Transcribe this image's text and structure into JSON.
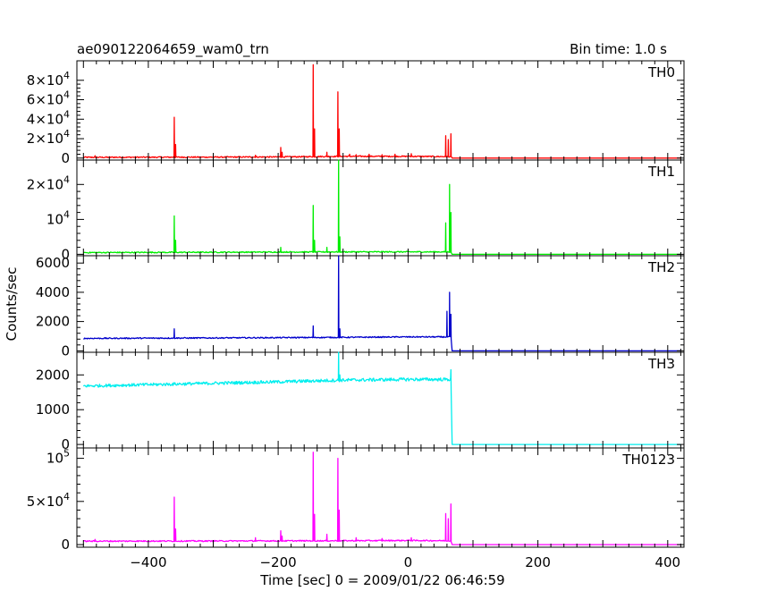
{
  "header": {
    "title": "ae090122064659_wam0_trn",
    "bin_time": "Bin time: 1.0 s"
  },
  "chart_data": {
    "type": "line",
    "xlabel": "Time [sec] 0 = 2009/01/22 06:46:59",
    "ylabel": "Counts/sec",
    "xlim": [
      -510,
      425
    ],
    "x_ticks": [
      -400,
      -200,
      0,
      200,
      400
    ],
    "x_tick_labels": [
      "−400",
      "−200",
      "0",
      "200",
      "400"
    ],
    "panels": [
      {
        "name": "TH0",
        "color": "#ff0000",
        "ylim": [
          -2000,
          100000
        ],
        "y_ticks": [
          0,
          20000,
          40000,
          60000,
          80000
        ],
        "y_tick_labels": [
          {
            "base": "0",
            "exp": ""
          },
          {
            "base": "2×10",
            "exp": "4"
          },
          {
            "base": "4×10",
            "exp": "4"
          },
          {
            "base": "6×10",
            "exp": "4"
          },
          {
            "base": "8×10",
            "exp": "4"
          }
        ],
        "baseline": [
          [
            -500,
            800
          ],
          [
            -400,
            900
          ],
          [
            -300,
            1000
          ],
          [
            -200,
            1200
          ],
          [
            -100,
            1800
          ],
          [
            0,
            1800
          ],
          [
            66,
            1500
          ],
          [
            68,
            0
          ],
          [
            420,
            0
          ]
        ],
        "spikes": [
          [
            -482,
            2500
          ],
          [
            -360,
            42000
          ],
          [
            -358,
            14000
          ],
          [
            -235,
            3000
          ],
          [
            -196,
            11000
          ],
          [
            -194,
            6000
          ],
          [
            -146,
            96000
          ],
          [
            -144,
            30000
          ],
          [
            -125,
            6000
          ],
          [
            -108,
            68000
          ],
          [
            -106,
            30000
          ],
          [
            -90,
            4000
          ],
          [
            -80,
            3500
          ],
          [
            -60,
            4000
          ],
          [
            -40,
            3500
          ],
          [
            -20,
            4000
          ],
          [
            5,
            4500
          ],
          [
            58,
            23000
          ],
          [
            62,
            19000
          ],
          [
            66,
            25000
          ]
        ]
      },
      {
        "name": "TH1",
        "color": "#00ee00",
        "ylim": [
          -400,
          27000
        ],
        "y_ticks": [
          0,
          10000,
          20000
        ],
        "y_tick_labels": [
          {
            "base": "0",
            "exp": ""
          },
          {
            "base": "10",
            "exp": "4"
          },
          {
            "base": "2×10",
            "exp": "4"
          }
        ],
        "baseline": [
          [
            -500,
            500
          ],
          [
            -300,
            600
          ],
          [
            -100,
            700
          ],
          [
            0,
            700
          ],
          [
            66,
            700
          ],
          [
            68,
            0
          ],
          [
            420,
            0
          ]
        ],
        "spikes": [
          [
            -360,
            11000
          ],
          [
            -358,
            4000
          ],
          [
            -196,
            2000
          ],
          [
            -146,
            14000
          ],
          [
            -144,
            4000
          ],
          [
            -125,
            2000
          ],
          [
            -107,
            27000
          ],
          [
            -105,
            5000
          ],
          [
            58,
            9000
          ],
          [
            64,
            20000
          ],
          [
            66,
            12000
          ]
        ]
      },
      {
        "name": "TH2",
        "color": "#0000cc",
        "ylim": [
          -100,
          6500
        ],
        "y_ticks": [
          0,
          2000,
          4000,
          6000
        ],
        "y_tick_labels": [
          {
            "base": "0",
            "exp": ""
          },
          {
            "base": "2000",
            "exp": ""
          },
          {
            "base": "4000",
            "exp": ""
          },
          {
            "base": "6000",
            "exp": ""
          }
        ],
        "baseline": [
          [
            -500,
            850
          ],
          [
            -300,
            880
          ],
          [
            -100,
            920
          ],
          [
            0,
            950
          ],
          [
            66,
            950
          ],
          [
            68,
            0
          ],
          [
            420,
            0
          ]
        ],
        "spikes": [
          [
            -360,
            1500
          ],
          [
            -146,
            1700
          ],
          [
            -107,
            6500
          ],
          [
            -105,
            1500
          ],
          [
            60,
            2700
          ],
          [
            64,
            4000
          ],
          [
            66,
            2500
          ]
        ]
      },
      {
        "name": "TH3",
        "color": "#00eeee",
        "ylim": [
          -100,
          2650
        ],
        "y_ticks": [
          0,
          1000,
          2000
        ],
        "y_tick_labels": [
          {
            "base": "0",
            "exp": ""
          },
          {
            "base": "1000",
            "exp": ""
          },
          {
            "base": "2000",
            "exp": ""
          }
        ],
        "baseline": [
          [
            -500,
            1680
          ],
          [
            -400,
            1720
          ],
          [
            -300,
            1760
          ],
          [
            -200,
            1800
          ],
          [
            -100,
            1850
          ],
          [
            0,
            1870
          ],
          [
            66,
            1870
          ],
          [
            68,
            0
          ],
          [
            420,
            0
          ]
        ],
        "spikes": [
          [
            -107,
            2650
          ],
          [
            -105,
            2000
          ],
          [
            66,
            2150
          ]
        ]
      },
      {
        "name": "TH0123",
        "color": "#ff00ff",
        "ylim": [
          -3000,
          112000
        ],
        "y_ticks": [
          0,
          50000,
          100000
        ],
        "y_tick_labels": [
          {
            "base": "0",
            "exp": ""
          },
          {
            "base": "5×10",
            "exp": "4"
          },
          {
            "base": "10",
            "exp": "5"
          }
        ],
        "baseline": [
          [
            -500,
            4000
          ],
          [
            -300,
            4200
          ],
          [
            -100,
            4500
          ],
          [
            0,
            4800
          ],
          [
            66,
            4500
          ],
          [
            68,
            0
          ],
          [
            420,
            0
          ]
        ],
        "spikes": [
          [
            -482,
            6000
          ],
          [
            -360,
            55000
          ],
          [
            -358,
            18000
          ],
          [
            -235,
            8000
          ],
          [
            -196,
            16000
          ],
          [
            -194,
            10000
          ],
          [
            -146,
            107000
          ],
          [
            -144,
            35000
          ],
          [
            -125,
            12000
          ],
          [
            -108,
            100000
          ],
          [
            -106,
            40000
          ],
          [
            -80,
            8000
          ],
          [
            -40,
            7000
          ],
          [
            5,
            8000
          ],
          [
            58,
            36000
          ],
          [
            62,
            30000
          ],
          [
            66,
            47000
          ]
        ]
      }
    ]
  }
}
